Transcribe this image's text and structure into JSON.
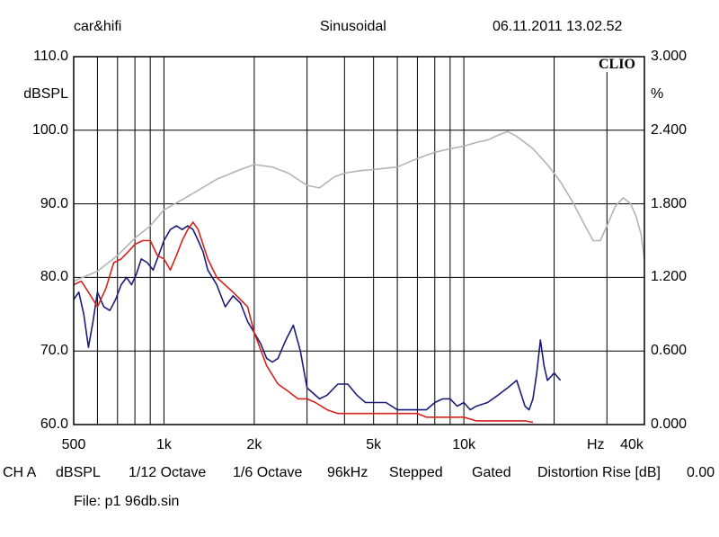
{
  "header": {
    "brand": "car&hifi",
    "mode": "Sinusoidal",
    "datetime": "06.11.2011 13.02.52"
  },
  "logo": "CLIO",
  "footer": {
    "channel": "CH A",
    "unit": "dBSPL",
    "smoothing": "1/12 Octave",
    "resolution": "1/6 Octave",
    "sample_rate": "96kHz",
    "sweep": "Stepped",
    "window": "Gated",
    "distortion_label": "Distortion Rise [dB]",
    "distortion_value": "0.00",
    "file": "File: p1 96db.sin"
  },
  "colors": {
    "background": "#ffffff",
    "grid": "#000000",
    "series_blue": "#1c1c78",
    "series_red": "#d4231b",
    "series_gray": "#b4b4b4"
  },
  "chart_data": {
    "type": "line",
    "xscale": "log",
    "xlim": [
      500,
      40000
    ],
    "ylim": [
      60,
      110
    ],
    "y2lim": [
      0,
      3
    ],
    "ylabel": "dBSPL",
    "y2label": "%",
    "xunit": "Hz",
    "grid": true,
    "x_ticks": [
      {
        "value": 500,
        "label": "500"
      },
      {
        "value": 1000,
        "label": "1k"
      },
      {
        "value": 2000,
        "label": "2k"
      },
      {
        "value": 5000,
        "label": "5k"
      },
      {
        "value": 10000,
        "label": "10k"
      },
      {
        "value": 40000,
        "label": "40k"
      }
    ],
    "x_gridlines": [
      500,
      600,
      700,
      800,
      900,
      1000,
      2000,
      3000,
      4000,
      5000,
      6000,
      7000,
      8000,
      9000,
      10000,
      20000,
      30000,
      40000
    ],
    "y_ticks": [
      {
        "value": 110,
        "label": "110.0"
      },
      {
        "value": 100,
        "label": "100.0"
      },
      {
        "value": 90,
        "label": "90.0"
      },
      {
        "value": 80,
        "label": "80.0"
      },
      {
        "value": 70,
        "label": "70.0"
      },
      {
        "value": 60,
        "label": "60.0"
      }
    ],
    "y2_ticks": [
      {
        "value": 3.0,
        "label": "3.000"
      },
      {
        "value": 2.4,
        "label": "2.400"
      },
      {
        "value": 1.8,
        "label": "1.800"
      },
      {
        "value": 1.2,
        "label": "1.200"
      },
      {
        "value": 0.6,
        "label": "0.600"
      },
      {
        "value": 0.0,
        "label": "0.000"
      }
    ],
    "series": [
      {
        "color": "series_gray",
        "axis": "right",
        "points": [
          [
            500,
            1.17
          ],
          [
            600,
            1.25
          ],
          [
            700,
            1.38
          ],
          [
            800,
            1.52
          ],
          [
            900,
            1.62
          ],
          [
            1000,
            1.75
          ],
          [
            1200,
            1.86
          ],
          [
            1500,
            2.0
          ],
          [
            1800,
            2.08
          ],
          [
            2000,
            2.12
          ],
          [
            2300,
            2.1
          ],
          [
            2600,
            2.05
          ],
          [
            3000,
            1.95
          ],
          [
            3300,
            1.93
          ],
          [
            3700,
            2.02
          ],
          [
            4000,
            2.05
          ],
          [
            4500,
            2.07
          ],
          [
            5000,
            2.08
          ],
          [
            6000,
            2.1
          ],
          [
            7000,
            2.17
          ],
          [
            8000,
            2.22
          ],
          [
            9000,
            2.25
          ],
          [
            10000,
            2.27
          ],
          [
            11000,
            2.3
          ],
          [
            12000,
            2.32
          ],
          [
            13000,
            2.36
          ],
          [
            14000,
            2.39
          ],
          [
            15000,
            2.35
          ],
          [
            17000,
            2.25
          ],
          [
            19000,
            2.12
          ],
          [
            21000,
            1.98
          ],
          [
            23000,
            1.82
          ],
          [
            25000,
            1.65
          ],
          [
            27000,
            1.5
          ],
          [
            28500,
            1.5
          ],
          [
            30000,
            1.62
          ],
          [
            32000,
            1.78
          ],
          [
            34000,
            1.85
          ],
          [
            36000,
            1.8
          ],
          [
            37500,
            1.7
          ],
          [
            39000,
            1.55
          ],
          [
            40000,
            1.35
          ]
        ]
      },
      {
        "color": "series_blue",
        "axis": "left",
        "points": [
          [
            500,
            77
          ],
          [
            520,
            78
          ],
          [
            540,
            75
          ],
          [
            560,
            70.5
          ],
          [
            580,
            74
          ],
          [
            600,
            78
          ],
          [
            630,
            76
          ],
          [
            660,
            75.5
          ],
          [
            690,
            77
          ],
          [
            720,
            79
          ],
          [
            750,
            80
          ],
          [
            780,
            79
          ],
          [
            810,
            80.5
          ],
          [
            840,
            82.5
          ],
          [
            880,
            82
          ],
          [
            920,
            81
          ],
          [
            960,
            83
          ],
          [
            1000,
            85
          ],
          [
            1050,
            86.5
          ],
          [
            1100,
            87
          ],
          [
            1150,
            86.5
          ],
          [
            1200,
            87
          ],
          [
            1250,
            86.5
          ],
          [
            1300,
            85
          ],
          [
            1350,
            83.5
          ],
          [
            1400,
            81
          ],
          [
            1500,
            79
          ],
          [
            1600,
            76
          ],
          [
            1700,
            77.5
          ],
          [
            1800,
            76.5
          ],
          [
            1900,
            74
          ],
          [
            2000,
            72.5
          ],
          [
            2100,
            71
          ],
          [
            2200,
            69
          ],
          [
            2300,
            68.5
          ],
          [
            2400,
            69
          ],
          [
            2550,
            71.5
          ],
          [
            2700,
            73.5
          ],
          [
            2850,
            70
          ],
          [
            3000,
            65
          ],
          [
            3300,
            63.5
          ],
          [
            3500,
            64
          ],
          [
            3800,
            65.5
          ],
          [
            4100,
            65.5
          ],
          [
            4400,
            64
          ],
          [
            4700,
            63
          ],
          [
            5000,
            63
          ],
          [
            5500,
            63
          ],
          [
            6000,
            62
          ],
          [
            6500,
            62
          ],
          [
            7000,
            62
          ],
          [
            7500,
            62
          ],
          [
            8000,
            63
          ],
          [
            8500,
            63.5
          ],
          [
            9000,
            63.5
          ],
          [
            9500,
            62.5
          ],
          [
            10000,
            63
          ],
          [
            10500,
            62
          ],
          [
            11000,
            62.5
          ],
          [
            12000,
            63
          ],
          [
            13000,
            64
          ],
          [
            14000,
            65
          ],
          [
            15000,
            66
          ],
          [
            16000,
            62.5
          ],
          [
            16500,
            62
          ],
          [
            17000,
            63.5
          ],
          [
            17500,
            67
          ],
          [
            18000,
            71.5
          ],
          [
            18500,
            68
          ],
          [
            19000,
            66
          ],
          [
            20000,
            67
          ],
          [
            21000,
            66
          ]
        ]
      },
      {
        "color": "series_red",
        "axis": "left",
        "points": [
          [
            500,
            79
          ],
          [
            530,
            79.5
          ],
          [
            560,
            78
          ],
          [
            600,
            76
          ],
          [
            640,
            78.5
          ],
          [
            680,
            82
          ],
          [
            720,
            82.5
          ],
          [
            760,
            83.5
          ],
          [
            800,
            84.5
          ],
          [
            850,
            85
          ],
          [
            900,
            85
          ],
          [
            950,
            83
          ],
          [
            1000,
            82.5
          ],
          [
            1050,
            81
          ],
          [
            1100,
            83
          ],
          [
            1150,
            85
          ],
          [
            1200,
            86.5
          ],
          [
            1250,
            87.5
          ],
          [
            1300,
            86.5
          ],
          [
            1400,
            82.5
          ],
          [
            1500,
            80
          ],
          [
            1700,
            78
          ],
          [
            1900,
            76
          ],
          [
            2000,
            72.5
          ],
          [
            2200,
            68
          ],
          [
            2400,
            65.5
          ],
          [
            2600,
            64.5
          ],
          [
            2800,
            63.5
          ],
          [
            3000,
            63.5
          ],
          [
            3200,
            63
          ],
          [
            3500,
            62
          ],
          [
            3800,
            61.5
          ],
          [
            4200,
            61.5
          ],
          [
            4600,
            61.5
          ],
          [
            5000,
            61.5
          ],
          [
            5500,
            61.5
          ],
          [
            6000,
            61.5
          ],
          [
            6500,
            61.5
          ],
          [
            7000,
            61.5
          ],
          [
            7500,
            61
          ],
          [
            8000,
            61
          ],
          [
            8500,
            61
          ],
          [
            9000,
            61
          ],
          [
            9500,
            61
          ],
          [
            10000,
            61
          ],
          [
            11000,
            60.5
          ],
          [
            12000,
            60.5
          ],
          [
            13000,
            60.5
          ],
          [
            14000,
            60.5
          ],
          [
            15000,
            60.5
          ],
          [
            16000,
            60.5
          ],
          [
            17000,
            60.3
          ]
        ]
      }
    ]
  }
}
